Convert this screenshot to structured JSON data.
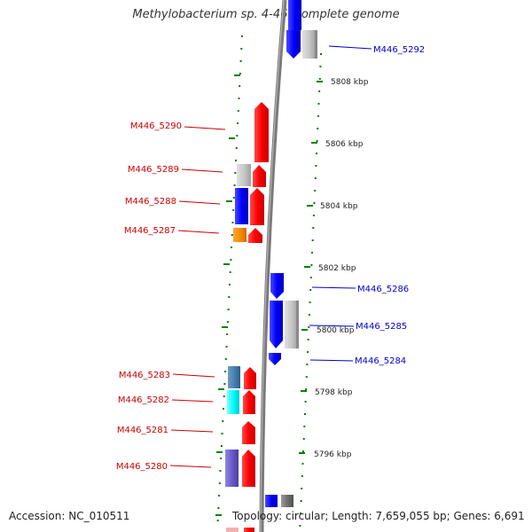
{
  "title": "Methylobacterium sp. 4-46, complete genome",
  "footer": {
    "accession": "Accession: NC_010511",
    "summary": "Topology: circular; Length: 7,659,055 bp; Genes: 6,691"
  },
  "colors": {
    "forward": "#ff0000",
    "reverse": "#0000ff",
    "backbone": "#808080",
    "ruler": "#008000",
    "label_red": "#cc0000",
    "label_blue": "#0000cc"
  },
  "ticks": [
    {
      "label": "5808 kbp",
      "kbp": 5808
    },
    {
      "label": "5806 kbp",
      "kbp": 5806
    },
    {
      "label": "5804 kbp",
      "kbp": 5804
    },
    {
      "label": "5802 kbp",
      "kbp": 5802
    },
    {
      "label": "5800 kbp",
      "kbp": 5800
    },
    {
      "label": "5798 kbp",
      "kbp": 5798
    },
    {
      "label": "5796 kbp",
      "kbp": 5796
    }
  ],
  "genes": [
    {
      "label": "M446_5292",
      "strand": "reverse",
      "side": "right"
    },
    {
      "label": "M446_5290",
      "strand": "forward",
      "side": "left"
    },
    {
      "label": "M446_5289",
      "strand": "forward",
      "side": "left"
    },
    {
      "label": "M446_5288",
      "strand": "forward",
      "side": "left"
    },
    {
      "label": "M446_5287",
      "strand": "forward",
      "side": "left"
    },
    {
      "label": "M446_5286",
      "strand": "reverse",
      "side": "right"
    },
    {
      "label": "M446_5285",
      "strand": "reverse",
      "side": "right"
    },
    {
      "label": "M446_5284",
      "strand": "reverse",
      "side": "right"
    },
    {
      "label": "M446_5283",
      "strand": "forward",
      "side": "left"
    },
    {
      "label": "M446_5282",
      "strand": "forward",
      "side": "left"
    },
    {
      "label": "M446_5281",
      "strand": "forward",
      "side": "left"
    },
    {
      "label": "M446_5280",
      "strand": "forward",
      "side": "left"
    }
  ]
}
